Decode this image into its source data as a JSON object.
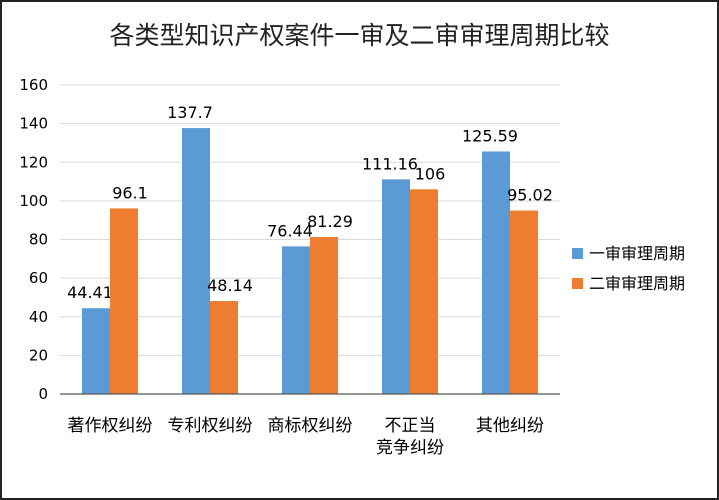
{
  "colors": {
    "series1": "#5b9bd5",
    "series2": "#ed7d31",
    "grid": "#d9d9d9",
    "axis": "#595959"
  },
  "chart_data": {
    "type": "bar",
    "title": "各类型知识产权案件一审及二审审理周期比较",
    "categories": [
      "著作权纠纷",
      "专利权纠纷",
      "商标权纠纷",
      "不正当\n竞争纠纷",
      "其他纠纷"
    ],
    "series": [
      {
        "name": "一审审理周期",
        "values": [
          44.41,
          137.7,
          76.44,
          111.16,
          125.59
        ],
        "labels": [
          "44.41",
          "137.7",
          "76.44",
          "111.16",
          "125.59"
        ]
      },
      {
        "name": "二审审理周期",
        "values": [
          96.1,
          48.14,
          81.29,
          106,
          95.02
        ],
        "labels": [
          "96.1",
          "48.14",
          "81.29",
          "106",
          "95.02"
        ]
      }
    ],
    "ylim": [
      0,
      160
    ],
    "yticks": [
      0,
      20,
      40,
      60,
      80,
      100,
      120,
      140,
      160
    ],
    "xlabel": "",
    "ylabel": "",
    "grid": true,
    "legend_position": "right"
  }
}
